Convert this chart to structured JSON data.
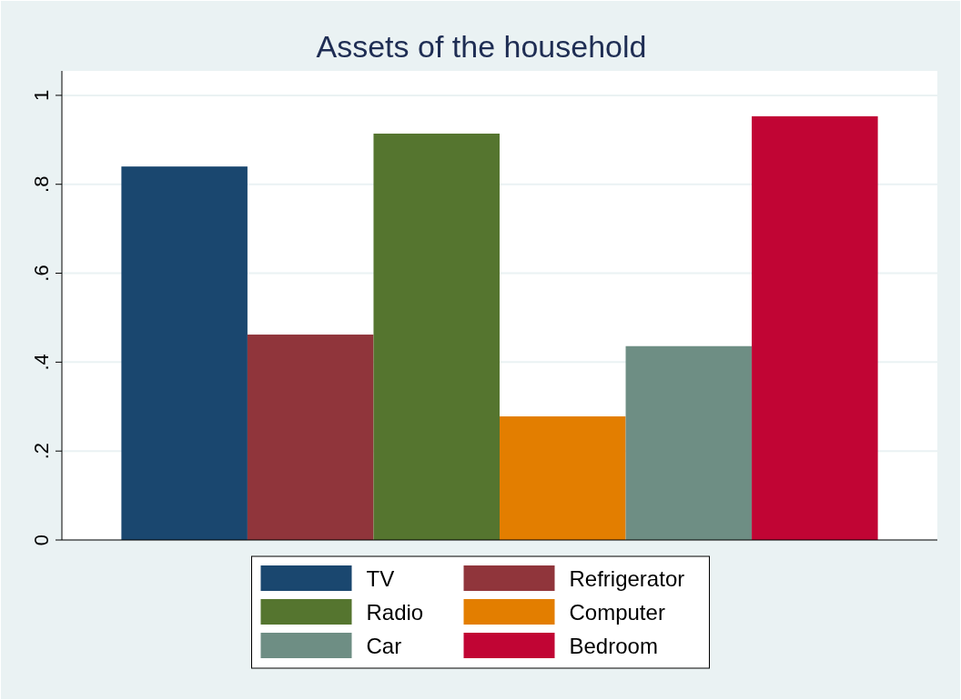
{
  "chart_data": {
    "type": "bar",
    "title": "Assets of the household",
    "categories": [
      null
    ],
    "series": [
      {
        "name": "TV",
        "color": "#1a476f",
        "values": [
          0.84
        ]
      },
      {
        "name": "Refrigerator",
        "color": "#90353b",
        "values": [
          0.462
        ]
      },
      {
        "name": "Radio",
        "color": "#55752f",
        "values": [
          0.914
        ]
      },
      {
        "name": "Computer",
        "color": "#e37e00",
        "values": [
          0.278
        ]
      },
      {
        "name": "Car",
        "color": "#6e8e84",
        "values": [
          0.436
        ]
      },
      {
        "name": "Bedroom",
        "color": "#c10534",
        "values": [
          0.953
        ]
      }
    ],
    "ylim": [
      0,
      1.055
    ],
    "yticks": [
      0,
      {
        "value": 0.2,
        "label": ".2"
      },
      {
        "value": 0.4,
        "label": ".4"
      },
      {
        "value": 0.6,
        "label": ".6"
      },
      {
        "value": 0.8,
        "label": ".8"
      },
      1
    ],
    "grid": "y",
    "legend": "bottom"
  }
}
